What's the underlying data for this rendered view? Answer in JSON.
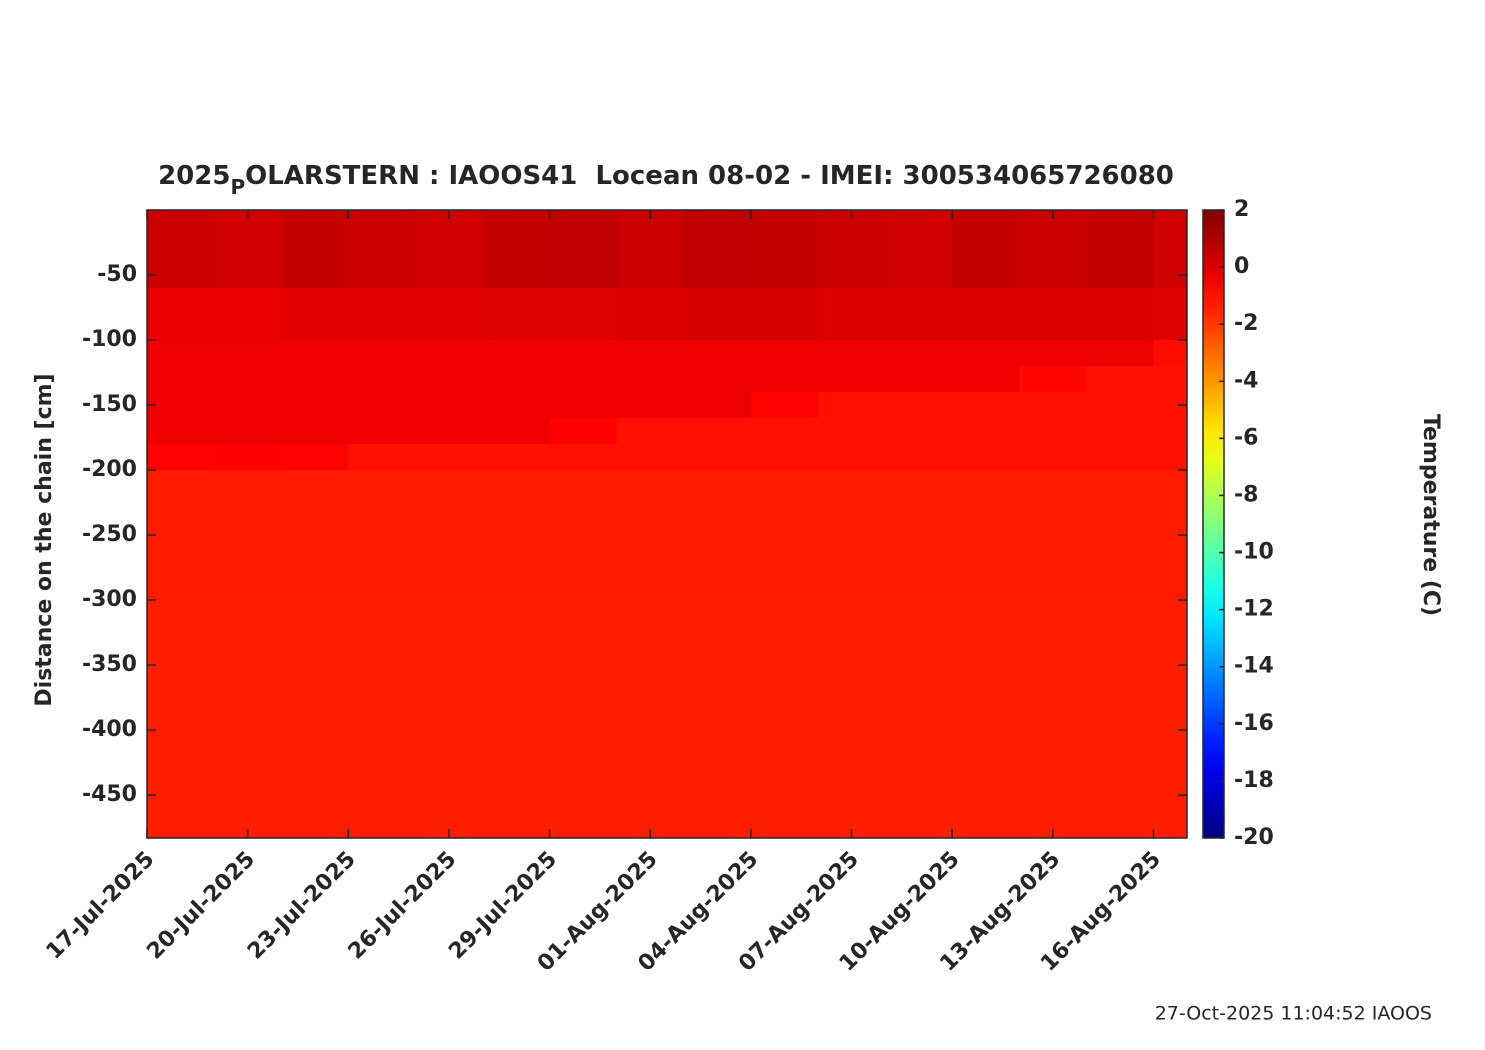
{
  "chart_data": {
    "type": "heatmap",
    "title_parts": [
      "2025",
      "P",
      "OLARSTERN : IAOOS41  Locean 08-02 - IMEI: 300534065726080"
    ],
    "ylabel": "Distance on the chain [cm]",
    "colorbar_label": "Temperature (C)",
    "footer": "27-Oct-2025 11:04:52 IAOOS",
    "colormap": "jet",
    "x": [
      "17-Jul-2025",
      "19-Jul-2025",
      "21-Jul-2025",
      "23-Jul-2025",
      "25-Jul-2025",
      "27-Jul-2025",
      "29-Jul-2025",
      "31-Jul-2025",
      "02-Aug-2025",
      "04-Aug-2025",
      "06-Aug-2025",
      "08-Aug-2025",
      "10-Aug-2025",
      "12-Aug-2025",
      "14-Aug-2025",
      "16-Aug-2025"
    ],
    "xlim": [
      "17-Jul-2025",
      "17-Aug-2025"
    ],
    "xticks": [
      "17-Jul-2025",
      "20-Jul-2025",
      "23-Jul-2025",
      "26-Jul-2025",
      "29-Jul-2025",
      "01-Aug-2025",
      "04-Aug-2025",
      "07-Aug-2025",
      "10-Aug-2025",
      "13-Aug-2025",
      "16-Aug-2025"
    ],
    "y": [
      0,
      -60,
      -100,
      -120,
      -140,
      -160,
      -180,
      -200,
      -300,
      -400
    ],
    "ylim": [
      -483,
      0
    ],
    "yticks": [
      -50,
      -100,
      -150,
      -200,
      -250,
      -300,
      -350,
      -400,
      -450
    ],
    "z": [
      [
        0.4,
        0.3,
        0.5,
        0.4,
        0.3,
        0.5,
        0.6,
        0.4,
        0.6,
        0.5,
        0.4,
        0.3,
        0.5,
        0.4,
        0.5,
        0.3
      ],
      [
        -0.3,
        -0.3,
        -0.2,
        -0.2,
        -0.2,
        -0.1,
        -0.1,
        0.0,
        0.1,
        0.1,
        0.0,
        0.0,
        0.0,
        0.0,
        0.0,
        -0.1
      ],
      [
        -0.4,
        -0.4,
        -0.4,
        -0.4,
        -0.4,
        -0.4,
        -0.4,
        -0.4,
        -0.4,
        -0.4,
        -0.4,
        -0.4,
        -0.4,
        -0.4,
        -0.4,
        -1.0
      ],
      [
        -0.4,
        -0.4,
        -0.4,
        -0.4,
        -0.4,
        -0.4,
        -0.4,
        -0.4,
        -0.4,
        -0.4,
        -0.4,
        -0.4,
        -0.4,
        -0.9,
        -1.1,
        -1.1
      ],
      [
        -0.4,
        -0.4,
        -0.4,
        -0.4,
        -0.4,
        -0.4,
        -0.4,
        -0.4,
        -0.4,
        -0.8,
        -1.1,
        -1.1,
        -1.1,
        -1.1,
        -1.1,
        -1.1
      ],
      [
        -0.4,
        -0.4,
        -0.4,
        -0.4,
        -0.4,
        -0.4,
        -0.7,
        -1.1,
        -1.1,
        -1.1,
        -1.1,
        -1.1,
        -1.1,
        -1.1,
        -1.1,
        -1.1
      ],
      [
        -0.8,
        -0.7,
        -0.8,
        -1.1,
        -1.1,
        -1.1,
        -1.1,
        -1.1,
        -1.1,
        -1.1,
        -1.1,
        -1.1,
        -1.1,
        -1.1,
        -1.1,
        -1.1
      ],
      [
        -1.3,
        -1.3,
        -1.3,
        -1.3,
        -1.3,
        -1.3,
        -1.3,
        -1.3,
        -1.3,
        -1.3,
        -1.3,
        -1.3,
        -1.3,
        -1.3,
        -1.3,
        -1.3
      ],
      [
        -1.4,
        -1.4,
        -1.4,
        -1.4,
        -1.4,
        -1.4,
        -1.4,
        -1.4,
        -1.4,
        -1.4,
        -1.4,
        -1.4,
        -1.4,
        -1.4,
        -1.4,
        -1.4
      ],
      [
        -1.4,
        -1.4,
        -1.4,
        -1.4,
        -1.4,
        -1.4,
        -1.4,
        -1.4,
        -1.4,
        -1.4,
        -1.4,
        -1.4,
        -1.4,
        -1.4,
        -1.4,
        -1.4
      ]
    ],
    "clim": [
      -20,
      2
    ],
    "cticks": [
      2,
      0,
      -2,
      -4,
      -6,
      -8,
      -10,
      -12,
      -14,
      -16,
      -18,
      -20
    ]
  }
}
